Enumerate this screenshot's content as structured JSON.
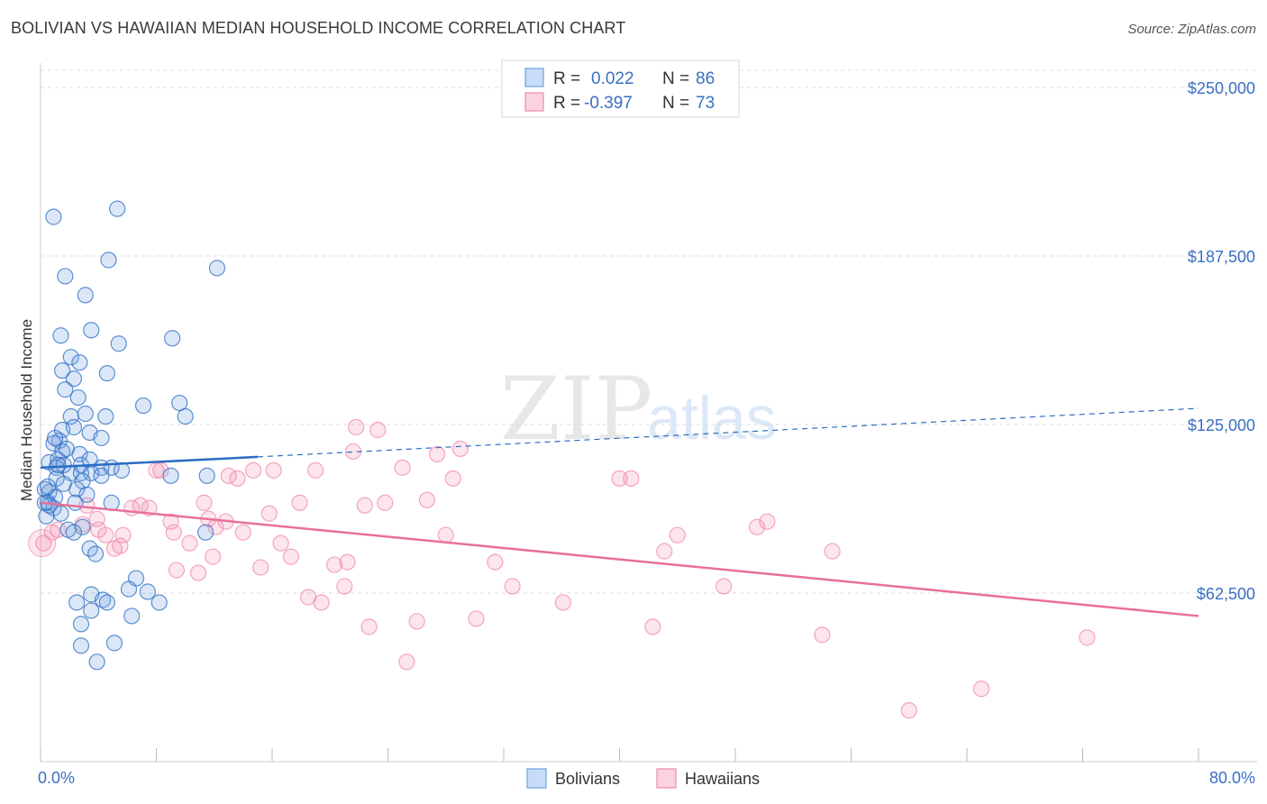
{
  "title": "BOLIVIAN VS HAWAIIAN MEDIAN HOUSEHOLD INCOME CORRELATION CHART",
  "source": "Source: ZipAtlas.com",
  "watermark": {
    "zip": "ZIP",
    "atlas": "atlas"
  },
  "colors": {
    "bolivian": "#6fa0e0",
    "bolivian_line": "#2b6cc4",
    "hawaiian": "#f08aaa",
    "hawaiian_line": "#e8709a",
    "axis_text": "#3a6fc4"
  },
  "legend_top": [
    {
      "r_label": "R =",
      "r_value": "0.022",
      "n_label": "N =",
      "n_value": "86"
    },
    {
      "r_label": "R =",
      "r_value": "-0.397",
      "n_label": "N =",
      "n_value": "73"
    }
  ],
  "legend_bottom": [
    "Bolivians",
    "Hawaiians"
  ],
  "chart_data": {
    "type": "scatter",
    "title": "BOLIVIAN VS HAWAIIAN MEDIAN HOUSEHOLD INCOME CORRELATION CHART",
    "xlabel": "",
    "ylabel": "Median Household Income",
    "xlim": [
      0,
      80
    ],
    "ylim": [
      0,
      250000
    ],
    "x_tick_labels": [
      "0.0%",
      "80.0%"
    ],
    "y_ticks": [
      62500,
      125000,
      187500,
      250000
    ],
    "y_tick_labels": [
      "$62,500",
      "$125,000",
      "$187,500",
      "$250,000"
    ],
    "series": [
      {
        "name": "Bolivians",
        "trend": {
          "x0": 0,
          "y0": 109000,
          "x1": 15,
          "y1": 113000,
          "dashed_to_x": 80,
          "dashed_to_y": 131000
        },
        "points": [
          [
            5.3,
            205000
          ],
          [
            0.9,
            202000
          ],
          [
            4.7,
            186000
          ],
          [
            1.7,
            180000
          ],
          [
            12.2,
            183000
          ],
          [
            3.1,
            173000
          ],
          [
            1.4,
            158000
          ],
          [
            3.5,
            160000
          ],
          [
            5.4,
            155000
          ],
          [
            9.1,
            157000
          ],
          [
            2.1,
            150000
          ],
          [
            2.7,
            148000
          ],
          [
            1.5,
            145000
          ],
          [
            2.3,
            142000
          ],
          [
            4.6,
            144000
          ],
          [
            1.7,
            138000
          ],
          [
            2.6,
            135000
          ],
          [
            7.1,
            132000
          ],
          [
            9.6,
            133000
          ],
          [
            2.1,
            128000
          ],
          [
            4.5,
            128000
          ],
          [
            10.0,
            128000
          ],
          [
            1.5,
            123000
          ],
          [
            3.4,
            122000
          ],
          [
            4.2,
            120000
          ],
          [
            1.3,
            119000
          ],
          [
            0.9,
            118000
          ],
          [
            1.5,
            115000
          ],
          [
            2.7,
            114000
          ],
          [
            2.8,
            110000
          ],
          [
            1.2,
            112000
          ],
          [
            3.4,
            112000
          ],
          [
            1.6,
            110000
          ],
          [
            0.6,
            111000
          ],
          [
            1.1,
            109000
          ],
          [
            2.1,
            107000
          ],
          [
            2.8,
            107000
          ],
          [
            4.9,
            109000
          ],
          [
            4.2,
            109000
          ],
          [
            5.6,
            108000
          ],
          [
            1.1,
            105000
          ],
          [
            3.5,
            107000
          ],
          [
            9.0,
            106000
          ],
          [
            11.5,
            106000
          ],
          [
            2.9,
            104000
          ],
          [
            4.2,
            106000
          ],
          [
            1.6,
            103000
          ],
          [
            2.5,
            101000
          ],
          [
            0.6,
            100000
          ],
          [
            0.3,
            101000
          ],
          [
            1.0,
            98000
          ],
          [
            3.2,
            99000
          ],
          [
            2.4,
            96000
          ],
          [
            0.5,
            96000
          ],
          [
            0.9,
            94000
          ],
          [
            4.9,
            96000
          ],
          [
            1.4,
            92000
          ],
          [
            0.4,
            91000
          ],
          [
            2.9,
            87000
          ],
          [
            1.9,
            86000
          ],
          [
            2.3,
            85000
          ],
          [
            11.4,
            85000
          ],
          [
            3.4,
            79000
          ],
          [
            3.8,
            77000
          ],
          [
            6.6,
            68000
          ],
          [
            3.5,
            62000
          ],
          [
            6.1,
            64000
          ],
          [
            7.4,
            63000
          ],
          [
            2.5,
            59000
          ],
          [
            4.3,
            60000
          ],
          [
            4.6,
            59000
          ],
          [
            8.2,
            59000
          ],
          [
            3.5,
            56000
          ],
          [
            6.3,
            54000
          ],
          [
            2.8,
            51000
          ],
          [
            5.1,
            44000
          ],
          [
            2.8,
            43000
          ],
          [
            3.9,
            37000
          ],
          [
            0.6,
            95000
          ],
          [
            0.3,
            96000
          ],
          [
            1.8,
            116000
          ],
          [
            3.1,
            129000
          ],
          [
            1.0,
            120000
          ],
          [
            2.3,
            124000
          ],
          [
            0.5,
            102000
          ],
          [
            1.2,
            110000
          ]
        ]
      },
      {
        "name": "Hawaiians",
        "trend": {
          "x0": 0,
          "y0": 96000,
          "x1": 80,
          "y1": 54000
        },
        "points": [
          [
            0.2,
            81000
          ],
          [
            1.2,
            86000
          ],
          [
            0.8,
            85000
          ],
          [
            2.9,
            88000
          ],
          [
            3.2,
            95000
          ],
          [
            3.9,
            90000
          ],
          [
            4.0,
            86000
          ],
          [
            4.5,
            84000
          ],
          [
            5.1,
            79000
          ],
          [
            5.5,
            80000
          ],
          [
            5.7,
            84000
          ],
          [
            6.3,
            94000
          ],
          [
            6.9,
            95000
          ],
          [
            7.5,
            94000
          ],
          [
            8.0,
            108000
          ],
          [
            8.3,
            108000
          ],
          [
            9.0,
            89000
          ],
          [
            9.2,
            85000
          ],
          [
            9.4,
            71000
          ],
          [
            10.3,
            81000
          ],
          [
            10.9,
            70000
          ],
          [
            11.3,
            96000
          ],
          [
            11.6,
            90000
          ],
          [
            11.9,
            76000
          ],
          [
            12.1,
            87000
          ],
          [
            12.8,
            89000
          ],
          [
            13.0,
            106000
          ],
          [
            13.6,
            105000
          ],
          [
            14.0,
            85000
          ],
          [
            14.7,
            108000
          ],
          [
            15.2,
            72000
          ],
          [
            15.8,
            92000
          ],
          [
            16.1,
            108000
          ],
          [
            16.6,
            81000
          ],
          [
            17.3,
            76000
          ],
          [
            17.9,
            96000
          ],
          [
            18.5,
            61000
          ],
          [
            19.0,
            108000
          ],
          [
            19.4,
            59000
          ],
          [
            20.3,
            73000
          ],
          [
            21.0,
            65000
          ],
          [
            21.2,
            74000
          ],
          [
            21.6,
            115000
          ],
          [
            21.8,
            124000
          ],
          [
            22.4,
            95000
          ],
          [
            22.7,
            50000
          ],
          [
            23.3,
            123000
          ],
          [
            23.8,
            96000
          ],
          [
            25.0,
            109000
          ],
          [
            25.3,
            37000
          ],
          [
            26.0,
            52000
          ],
          [
            26.7,
            97000
          ],
          [
            27.4,
            114000
          ],
          [
            28.0,
            84000
          ],
          [
            28.5,
            105000
          ],
          [
            29.0,
            116000
          ],
          [
            30.1,
            53000
          ],
          [
            31.4,
            74000
          ],
          [
            32.6,
            65000
          ],
          [
            36.1,
            59000
          ],
          [
            40.0,
            105000
          ],
          [
            40.8,
            105000
          ],
          [
            42.3,
            50000
          ],
          [
            43.1,
            78000
          ],
          [
            44.0,
            84000
          ],
          [
            47.2,
            65000
          ],
          [
            49.5,
            87000
          ],
          [
            50.2,
            89000
          ],
          [
            54.0,
            47000
          ],
          [
            54.7,
            78000
          ],
          [
            60.0,
            19000
          ],
          [
            65.0,
            27000
          ],
          [
            72.3,
            46000
          ]
        ]
      }
    ]
  }
}
